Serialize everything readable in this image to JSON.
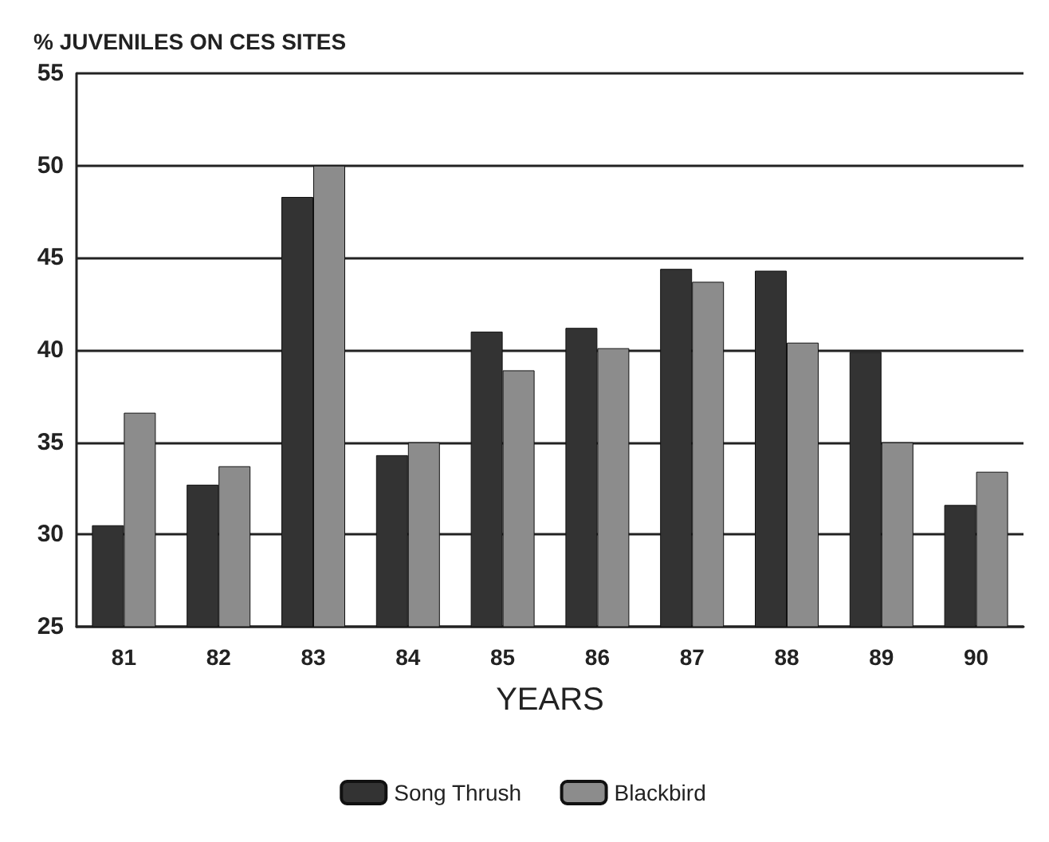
{
  "chart_data": {
    "type": "bar",
    "ylabel": "% JUVENILES ON CES SITES",
    "xlabel": "YEARS",
    "categories": [
      "81",
      "82",
      "83",
      "84",
      "85",
      "86",
      "87",
      "88",
      "89",
      "90"
    ],
    "series": [
      {
        "name": "Song Thrush",
        "color": "#333333",
        "values": [
          30.5,
          32.7,
          48.3,
          34.3,
          41,
          41.2,
          44.4,
          44.3,
          39.9,
          31.6
        ]
      },
      {
        "name": "Blackbird",
        "color": "#8c8c8c",
        "values": [
          36.6,
          33.7,
          50,
          35,
          38.9,
          40.1,
          43.7,
          40.4,
          35,
          33.4
        ]
      }
    ],
    "ylim": [
      25,
      55
    ],
    "yticks": [
      25,
      30,
      35,
      40,
      45,
      50,
      55
    ],
    "grid": "y",
    "legend": "bottom"
  }
}
